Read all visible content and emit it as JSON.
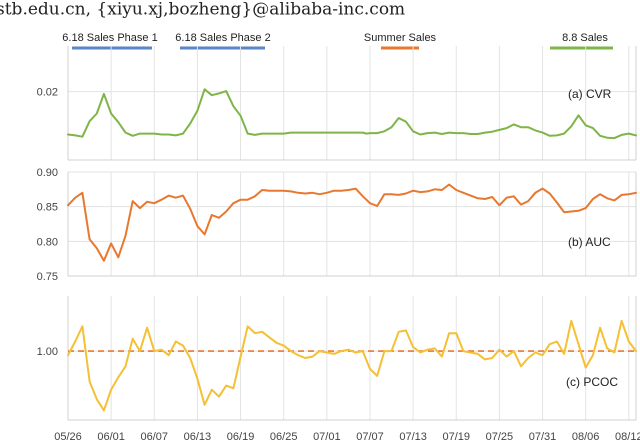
{
  "header_text": "stb.edu.cn, {xiyu.xj,bozheng}@alibaba-inc.com",
  "legend": [
    {
      "label": "6.18 Sales Phase 1",
      "color": "#5b86c5"
    },
    {
      "label": "6.18 Sales Phase 2",
      "color": "#5b86c5"
    },
    {
      "label": "Summer Sales",
      "color": "#e8782f"
    },
    {
      "label": "8.8 Sales",
      "color": "#7fb548"
    }
  ],
  "chart_data": [
    {
      "type": "line",
      "label": "(a) CVR",
      "color": "#7fb548",
      "yticks": [
        0.02
      ],
      "yticklabels": [
        "0.02"
      ],
      "ylim": [
        0.005,
        0.03
      ],
      "x": [
        0,
        1,
        2,
        3,
        4,
        5,
        6,
        7,
        8,
        9,
        10,
        11,
        12,
        13,
        14,
        15,
        16,
        17,
        18,
        19,
        20,
        21,
        22,
        23,
        24,
        25,
        26,
        27,
        28,
        29,
        30,
        31,
        32,
        33,
        34,
        35,
        36,
        37,
        38,
        39,
        40,
        41,
        41.5,
        42,
        43,
        44,
        45,
        46,
        47,
        48,
        49,
        50,
        51,
        52,
        53,
        54,
        55,
        56,
        57,
        58,
        59,
        60,
        61,
        62,
        63,
        64,
        65,
        66,
        67,
        68,
        69,
        70,
        71,
        72,
        73,
        74,
        75,
        76,
        77,
        78,
        79
      ],
      "values": [
        0.0106,
        0.0104,
        0.0101,
        0.0135,
        0.0152,
        0.0195,
        0.0152,
        0.0133,
        0.011,
        0.0103,
        0.0108,
        0.0108,
        0.0108,
        0.0106,
        0.0106,
        0.0104,
        0.0108,
        0.013,
        0.0158,
        0.0205,
        0.0192,
        0.0196,
        0.0201,
        0.0168,
        0.0147,
        0.0108,
        0.0105,
        0.0108,
        0.0108,
        0.0108,
        0.0108,
        0.011,
        0.011,
        0.011,
        0.011,
        0.011,
        0.011,
        0.011,
        0.011,
        0.011,
        0.011,
        0.011,
        0.0108,
        0.0109,
        0.0109,
        0.0113,
        0.0122,
        0.0142,
        0.0134,
        0.0113,
        0.0106,
        0.0109,
        0.011,
        0.0107,
        0.011,
        0.0109,
        0.0109,
        0.0107,
        0.0107,
        0.011,
        0.0112,
        0.0116,
        0.012,
        0.0128,
        0.0122,
        0.0122,
        0.0115,
        0.011,
        0.0103,
        0.0104,
        0.0108,
        0.0124,
        0.0148,
        0.0126,
        0.012,
        0.0103,
        0.0099,
        0.0098,
        0.0105,
        0.0108,
        0.0104
      ]
    },
    {
      "type": "line",
      "label": "(b) AUC",
      "color": "#e8782f",
      "yticks": [
        0.75,
        0.8,
        0.85,
        0.9
      ],
      "yticklabels": [
        "0.75",
        "0.80",
        "0.85",
        "0.90"
      ],
      "ylim": [
        0.75,
        0.9
      ],
      "x": [
        0,
        1,
        2,
        3,
        4,
        5,
        6,
        7,
        8,
        9,
        10,
        11,
        12,
        13,
        14,
        15,
        16,
        17,
        18,
        19,
        20,
        21,
        22,
        23,
        24,
        25,
        26,
        27,
        28,
        29,
        30,
        31,
        32,
        33,
        34,
        35,
        36,
        37,
        38,
        39,
        40,
        41,
        42,
        43,
        44,
        45,
        46,
        47,
        48,
        49,
        50,
        51,
        52,
        53,
        54,
        55,
        56,
        57,
        58,
        59,
        60,
        61,
        62,
        63,
        64,
        65,
        66,
        67,
        68,
        69,
        70,
        71,
        72,
        73,
        74,
        75,
        76,
        77,
        78,
        79
      ],
      "values": [
        0.852,
        0.863,
        0.87,
        0.803,
        0.79,
        0.772,
        0.797,
        0.777,
        0.808,
        0.858,
        0.848,
        0.857,
        0.855,
        0.86,
        0.866,
        0.863,
        0.866,
        0.847,
        0.822,
        0.81,
        0.838,
        0.834,
        0.843,
        0.855,
        0.86,
        0.86,
        0.865,
        0.874,
        0.873,
        0.873,
        0.873,
        0.872,
        0.87,
        0.869,
        0.87,
        0.868,
        0.87,
        0.873,
        0.873,
        0.874,
        0.876,
        0.865,
        0.855,
        0.851,
        0.868,
        0.868,
        0.867,
        0.869,
        0.873,
        0.871,
        0.872,
        0.875,
        0.874,
        0.882,
        0.874,
        0.87,
        0.866,
        0.862,
        0.861,
        0.864,
        0.852,
        0.863,
        0.865,
        0.853,
        0.858,
        0.87,
        0.876,
        0.869,
        0.856,
        0.842,
        0.843,
        0.844,
        0.848,
        0.861,
        0.868,
        0.862,
        0.859,
        0.867,
        0.868,
        0.87
      ]
    },
    {
      "type": "line",
      "label": "(c) PCOC",
      "color": "#f5c035",
      "yticks": [
        1.0
      ],
      "yticklabels": [
        "1.00"
      ],
      "ylim": [
        0.5,
        1.4
      ],
      "reference_line": 1.0,
      "reference_color": "#e8782f",
      "x": [
        0,
        1,
        2,
        3,
        4,
        5,
        6,
        7,
        8,
        9,
        10,
        11,
        12,
        13,
        14,
        15,
        16,
        17,
        18,
        19,
        20,
        21,
        22,
        23,
        24,
        25,
        26,
        27,
        28,
        29,
        30,
        31,
        32,
        33,
        34,
        35,
        36,
        37,
        38,
        39,
        40,
        41,
        42,
        43,
        44,
        45,
        46,
        47,
        48,
        49,
        50,
        51,
        52,
        53,
        54,
        55,
        56,
        57,
        58,
        59,
        60,
        61,
        62,
        63,
        64,
        65,
        66,
        67,
        68,
        69,
        70,
        71,
        72,
        73,
        74,
        75,
        76,
        77,
        78,
        79
      ],
      "values": [
        0.97,
        1.07,
        1.18,
        0.78,
        0.65,
        0.57,
        0.72,
        0.81,
        0.89,
        1.09,
        1.0,
        1.17,
        1.0,
        1.01,
        0.97,
        1.07,
        1.04,
        0.95,
        0.8,
        0.61,
        0.72,
        0.67,
        0.75,
        0.73,
        0.96,
        1.18,
        1.13,
        1.14,
        1.1,
        1.06,
        1.04,
        1.0,
        0.97,
        0.95,
        0.96,
        1.0,
        0.99,
        0.98,
        1.0,
        1.01,
        0.99,
        1.0,
        0.87,
        0.82,
        1.0,
        1.0,
        1.14,
        1.15,
        1.03,
        0.99,
        1.01,
        1.02,
        0.96,
        1.13,
        1.13,
        1.0,
        0.99,
        0.98,
        0.94,
        0.95,
        1.01,
        0.96,
        1.0,
        0.89,
        0.95,
        0.99,
        0.97,
        1.05,
        1.07,
        0.98,
        1.22,
        1.05,
        0.88,
        0.97,
        1.17,
        1.02,
        0.99,
        1.22,
        1.07,
        1.0
      ]
    }
  ],
  "xtick_labels": [
    "05/26",
    "06/01",
    "06/07",
    "06/13",
    "06/19",
    "06/25",
    "07/01",
    "07/07",
    "07/13",
    "07/19",
    "07/25",
    "07/31",
    "08/06",
    "08/12"
  ]
}
